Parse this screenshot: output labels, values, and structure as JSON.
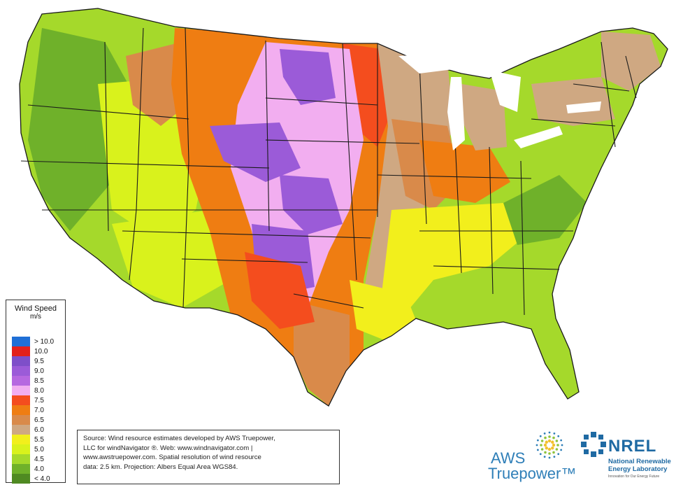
{
  "legend": {
    "title": "Wind Speed",
    "units": "m/s",
    "bins": [
      {
        "label": "> 10.0",
        "color": "#1f6fd6"
      },
      {
        "label": "10.0",
        "color": "#e3201b"
      },
      {
        "label": "9.5",
        "color": "#7e4fc9"
      },
      {
        "label": "9.0",
        "color": "#9b5bd8"
      },
      {
        "label": "8.5",
        "color": "#b668e0"
      },
      {
        "label": "8.0",
        "color": "#f2aef0"
      },
      {
        "label": "7.5",
        "color": "#f44d1e"
      },
      {
        "label": "7.0",
        "color": "#ef7d12"
      },
      {
        "label": "6.5",
        "color": "#d98a4a"
      },
      {
        "label": "6.0",
        "color": "#cfa882"
      },
      {
        "label": "5.5",
        "color": "#f2ef1c"
      },
      {
        "label": "5.0",
        "color": "#d9f21c"
      },
      {
        "label": "4.5",
        "color": "#a5d92b"
      },
      {
        "label": "4.0",
        "color": "#6fb12a"
      },
      {
        "label": "< 4.0",
        "color": "#4f8a22"
      }
    ]
  },
  "source": {
    "lines": [
      "Source: Wind resource estimates developed by AWS Truepower,",
      "LLC for windNavigator ®. Web: www.windnavigator.com |",
      "www.awstruepower.com. Spatial resolution of wind resource",
      "data: 2.5 km. Projection: Albers Equal Area WGS84."
    ]
  },
  "aws_logo": {
    "line1": "AWS",
    "line2": "Truepower™"
  },
  "nrel_logo": {
    "word": "NREL",
    "sub1": "National Renewable",
    "sub2": "Energy Laboratory",
    "tagline": "Innovation for Our Energy Future"
  },
  "map": {
    "title": "",
    "region_colors": {
      "west": "#a5d92b",
      "west_dark": "#6fb12a",
      "west_light": "#d9f21c",
      "plains_orange": "#ef7d12",
      "plains_red": "#f44d1e",
      "plains_pink": "#f2aef0",
      "plains_purple": "#9b5bd8",
      "midwest_tan": "#cfa882",
      "midwest_brown": "#d98a4a",
      "east_green": "#a5d92b",
      "east_yellow": "#f2ef1c",
      "state_line": "#1a1a1a"
    }
  }
}
